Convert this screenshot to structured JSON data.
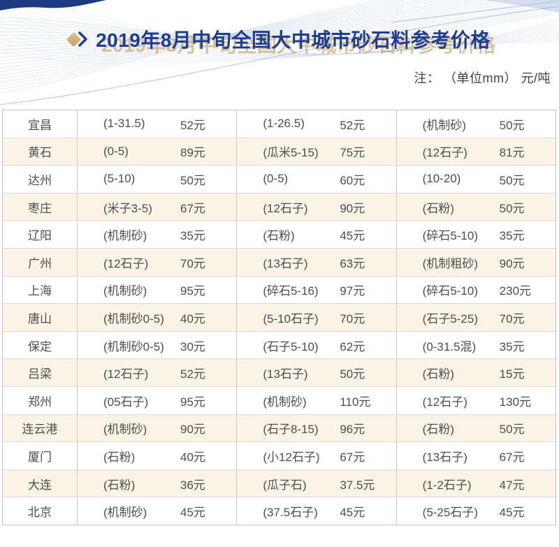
{
  "header": {
    "title": "2019年8月中旬全国大中城市砂石料参考价格",
    "note": "注：  （单位mm） 元/吨"
  },
  "colors": {
    "title_blue": "#1c3d96",
    "title_gold_shadow": "#c7a368",
    "stripe_row": "#faf3e6",
    "table_border": "#c2c2c2",
    "row_divider": "#dcdcdc",
    "cell_text": "#4e4e4e",
    "corner_navy": "#1d3a80",
    "wave_line": "#b9c7de"
  },
  "table": {
    "rows": [
      {
        "city": "宜昌",
        "items": [
          {
            "spec": "(1-31.5)",
            "price": "52元"
          },
          {
            "spec": "(1-26.5)",
            "price": "52元"
          },
          {
            "spec": "(机制砂)",
            "price": "50元"
          }
        ]
      },
      {
        "city": "黄石",
        "items": [
          {
            "spec": "(0-5)",
            "price": "89元"
          },
          {
            "spec": "(瓜米5-15)",
            "price": "75元"
          },
          {
            "spec": "(12石子)",
            "price": "81元"
          }
        ]
      },
      {
        "city": "达州",
        "items": [
          {
            "spec": "(5-10)",
            "price": "50元"
          },
          {
            "spec": "(0-5)",
            "price": "60元"
          },
          {
            "spec": "(10-20)",
            "price": "50元"
          }
        ]
      },
      {
        "city": "枣庄",
        "items": [
          {
            "spec": "(米子3-5)",
            "price": "67元"
          },
          {
            "spec": "(12石子)",
            "price": "90元"
          },
          {
            "spec": "(石粉)",
            "price": "50元"
          }
        ]
      },
      {
        "city": "辽阳",
        "items": [
          {
            "spec": "(机制砂)",
            "price": "35元"
          },
          {
            "spec": "(石粉)",
            "price": "45元"
          },
          {
            "spec": "(碎石5-10)",
            "price": "35元"
          }
        ]
      },
      {
        "city": "广州",
        "items": [
          {
            "spec": "(12石子)",
            "price": "70元"
          },
          {
            "spec": "(13石子)",
            "price": "63元"
          },
          {
            "spec": "(机制粗砂)",
            "price": "90元"
          }
        ]
      },
      {
        "city": "上海",
        "items": [
          {
            "spec": "(机制砂)",
            "price": "95元"
          },
          {
            "spec": "(碎石5-16)",
            "price": "97元"
          },
          {
            "spec": "(碎石5-10)",
            "price": "230元"
          }
        ]
      },
      {
        "city": "唐山",
        "items": [
          {
            "spec": "(机制砂0-5)",
            "price": "40元"
          },
          {
            "spec": "(5-10石子)",
            "price": "70元"
          },
          {
            "spec": "(石子5-25)",
            "price": "70元"
          }
        ]
      },
      {
        "city": "保定",
        "items": [
          {
            "spec": "(机制砂0-5)",
            "price": "30元"
          },
          {
            "spec": "(石子5-10)",
            "price": "62元"
          },
          {
            "spec": "(0-31.5混)",
            "price": "35元"
          }
        ]
      },
      {
        "city": "吕梁",
        "items": [
          {
            "spec": "(12石子)",
            "price": "52元"
          },
          {
            "spec": "(13石子)",
            "price": "50元"
          },
          {
            "spec": "(石粉)",
            "price": "15元"
          }
        ]
      },
      {
        "city": "郑州",
        "items": [
          {
            "spec": "(05石子)",
            "price": "95元"
          },
          {
            "spec": "(机制砂)",
            "price": "110元"
          },
          {
            "spec": "(12石子)",
            "price": "130元"
          }
        ]
      },
      {
        "city": "连云港",
        "items": [
          {
            "spec": "(机制砂)",
            "price": "90元"
          },
          {
            "spec": "(石子8-15)",
            "price": "96元"
          },
          {
            "spec": "(石粉)",
            "price": "50元"
          }
        ]
      },
      {
        "city": "厦门",
        "items": [
          {
            "spec": "(石粉)",
            "price": "40元"
          },
          {
            "spec": "(小12石子)",
            "price": "67元"
          },
          {
            "spec": "(13石子)",
            "price": "67元"
          }
        ]
      },
      {
        "city": "大连",
        "items": [
          {
            "spec": "(石粉)",
            "price": "36元"
          },
          {
            "spec": "(瓜子石)",
            "price": "37.5元"
          },
          {
            "spec": "(1-2石子)",
            "price": "47元"
          }
        ]
      },
      {
        "city": "北京",
        "items": [
          {
            "spec": "(机制砂)",
            "price": "45元"
          },
          {
            "spec": "(37.5石子)",
            "price": "45元"
          },
          {
            "spec": "(5-25石子)",
            "price": "45元"
          }
        ]
      }
    ]
  }
}
